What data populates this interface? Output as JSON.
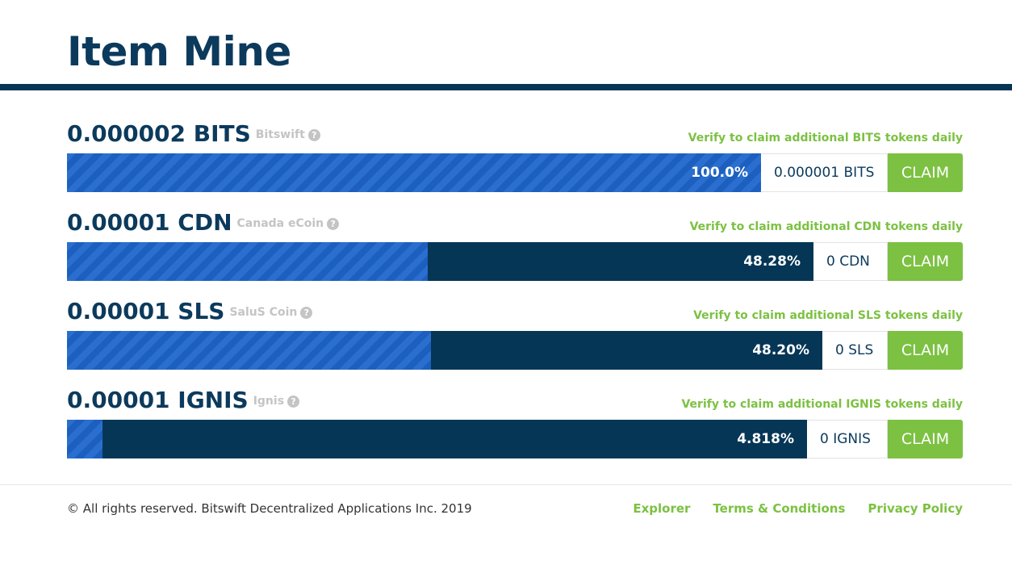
{
  "header": {
    "title": "Item Mine"
  },
  "tokens": [
    {
      "amount": "0.000002 BITS",
      "coin_name": "Bitswift",
      "verify_text": "Verify to claim additional BITS tokens daily",
      "progress_fraction": 1.0,
      "percent_label": "100.0%",
      "balance": "0.000001 BITS",
      "claim_label": "CLAIM"
    },
    {
      "amount": "0.00001 CDN",
      "coin_name": "Canada eCoin",
      "verify_text": "Verify to claim additional CDN tokens daily",
      "progress_fraction": 0.4828,
      "percent_label": "48.28%",
      "balance": "0 CDN",
      "claim_label": "CLAIM"
    },
    {
      "amount": "0.00001 SLS",
      "coin_name": "SaluS Coin",
      "verify_text": "Verify to claim additional SLS tokens daily",
      "progress_fraction": 0.482,
      "percent_label": "48.20%",
      "balance": "0 SLS",
      "claim_label": "CLAIM"
    },
    {
      "amount": "0.00001 IGNIS",
      "coin_name": "Ignis",
      "verify_text": "Verify to claim additional IGNIS tokens daily",
      "progress_fraction": 0.04818,
      "percent_label": "4.818%",
      "balance": "0 IGNIS",
      "claim_label": "CLAIM"
    }
  ],
  "icons": {
    "help": "question-circle-icon",
    "help_glyph": "?"
  },
  "colors": {
    "navy": "#053656",
    "fill_blue": "#2a6fcf",
    "accent_green": "#7cc142",
    "muted_gray": "#c4c4c4"
  },
  "footer": {
    "copyright": "© All rights reserved. Bitswift Decentralized Applications Inc. 2019",
    "links": [
      "Explorer",
      "Terms & Conditions",
      "Privacy Policy"
    ]
  }
}
